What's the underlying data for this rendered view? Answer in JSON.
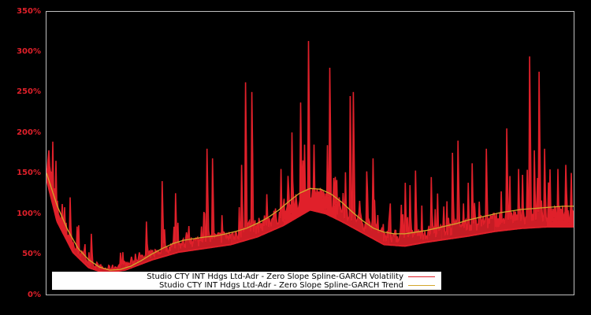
{
  "chart_data": {
    "type": "line",
    "title": "",
    "xlabel": "",
    "ylabel": "",
    "ylim": [
      0,
      350
    ],
    "y_unit": "%",
    "grid": false,
    "background": "#000000",
    "frame_color": "#c0c0c0",
    "tick_label_color": "#e0202a",
    "yticks": [
      "0%",
      "50%",
      "100%",
      "150%",
      "200%",
      "250%",
      "300%",
      "350%"
    ],
    "ytick_values": [
      0,
      50,
      100,
      150,
      200,
      250,
      300,
      350
    ],
    "legend_position": "lower center (inside plot)",
    "series": [
      {
        "name": "Studio CTY INT Hdgs Ltd-Adr - Zero Slope Spline-GARCH Volatility",
        "color": "#e0202a",
        "base_by_frac": [
          [
            0.0,
            150
          ],
          [
            0.02,
            95
          ],
          [
            0.05,
            55
          ],
          [
            0.08,
            35
          ],
          [
            0.11,
            28
          ],
          [
            0.15,
            32
          ],
          [
            0.2,
            45
          ],
          [
            0.25,
            55
          ],
          [
            0.3,
            60
          ],
          [
            0.35,
            65
          ],
          [
            0.4,
            75
          ],
          [
            0.45,
            90
          ],
          [
            0.5,
            110
          ],
          [
            0.53,
            105
          ],
          [
            0.56,
            95
          ],
          [
            0.6,
            80
          ],
          [
            0.64,
            65
          ],
          [
            0.68,
            63
          ],
          [
            0.72,
            68
          ],
          [
            0.76,
            72
          ],
          [
            0.8,
            76
          ],
          [
            0.85,
            82
          ],
          [
            0.9,
            86
          ],
          [
            0.95,
            88
          ],
          [
            1.0,
            88
          ]
        ],
        "spikes_by_frac": [
          [
            0.005,
            178
          ],
          [
            0.018,
            165
          ],
          [
            0.045,
            120
          ],
          [
            0.085,
            75
          ],
          [
            0.19,
            90
          ],
          [
            0.22,
            140
          ],
          [
            0.245,
            125
          ],
          [
            0.305,
            180
          ],
          [
            0.315,
            168
          ],
          [
            0.37,
            160
          ],
          [
            0.378,
            262
          ],
          [
            0.39,
            250
          ],
          [
            0.445,
            155
          ],
          [
            0.465,
            200
          ],
          [
            0.482,
            237
          ],
          [
            0.497,
            313
          ],
          [
            0.508,
            185
          ],
          [
            0.537,
            280
          ],
          [
            0.576,
            245
          ],
          [
            0.582,
            250
          ],
          [
            0.607,
            152
          ],
          [
            0.62,
            168
          ],
          [
            0.68,
            138
          ],
          [
            0.69,
            135
          ],
          [
            0.7,
            153
          ],
          [
            0.73,
            145
          ],
          [
            0.77,
            175
          ],
          [
            0.78,
            190
          ],
          [
            0.8,
            138
          ],
          [
            0.808,
            162
          ],
          [
            0.835,
            180
          ],
          [
            0.873,
            205
          ],
          [
            0.895,
            155
          ],
          [
            0.917,
            294
          ],
          [
            0.925,
            178
          ],
          [
            0.935,
            275
          ],
          [
            0.945,
            180
          ],
          [
            0.97,
            155
          ],
          [
            0.985,
            160
          ],
          [
            0.995,
            150
          ]
        ]
      },
      {
        "name": "Studio CTY INT Hdgs Ltd-Adr - Zero Slope Spline-GARCH Trend",
        "color": "#d4a72c",
        "points_by_frac": [
          [
            0.0,
            150
          ],
          [
            0.02,
            110
          ],
          [
            0.04,
            80
          ],
          [
            0.06,
            57
          ],
          [
            0.08,
            43
          ],
          [
            0.1,
            34
          ],
          [
            0.12,
            30
          ],
          [
            0.14,
            31
          ],
          [
            0.16,
            35
          ],
          [
            0.18,
            42
          ],
          [
            0.2,
            50
          ],
          [
            0.22,
            57
          ],
          [
            0.24,
            63
          ],
          [
            0.26,
            67
          ],
          [
            0.28,
            69
          ],
          [
            0.3,
            71
          ],
          [
            0.32,
            72
          ],
          [
            0.34,
            75
          ],
          [
            0.36,
            78
          ],
          [
            0.38,
            82
          ],
          [
            0.4,
            88
          ],
          [
            0.42,
            95
          ],
          [
            0.44,
            104
          ],
          [
            0.46,
            115
          ],
          [
            0.48,
            125
          ],
          [
            0.5,
            131
          ],
          [
            0.52,
            130
          ],
          [
            0.54,
            124
          ],
          [
            0.56,
            114
          ],
          [
            0.58,
            102
          ],
          [
            0.6,
            91
          ],
          [
            0.62,
            82
          ],
          [
            0.64,
            77
          ],
          [
            0.66,
            75
          ],
          [
            0.68,
            75
          ],
          [
            0.7,
            77
          ],
          [
            0.72,
            79
          ],
          [
            0.74,
            82
          ],
          [
            0.76,
            85
          ],
          [
            0.78,
            88
          ],
          [
            0.8,
            92
          ],
          [
            0.82,
            95
          ],
          [
            0.84,
            98
          ],
          [
            0.86,
            101
          ],
          [
            0.88,
            103
          ],
          [
            0.9,
            105
          ],
          [
            0.92,
            106
          ],
          [
            0.94,
            107
          ],
          [
            0.96,
            108
          ],
          [
            0.98,
            109
          ],
          [
            1.0,
            109
          ]
        ]
      }
    ]
  },
  "legend": {
    "items": [
      {
        "label": "Studio CTY INT Hdgs Ltd-Adr - Zero Slope Spline-GARCH Volatility",
        "color": "#e0202a"
      },
      {
        "label": "Studio CTY INT Hdgs Ltd-Adr - Zero Slope Spline-GARCH Trend",
        "color": "#d4a72c"
      }
    ]
  }
}
